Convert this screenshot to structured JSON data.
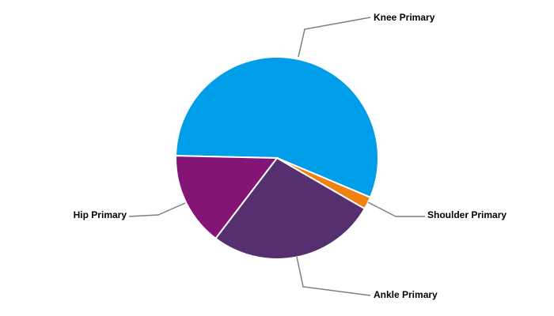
{
  "chart_data": {
    "type": "pie",
    "categories": [
      "Knee Primary",
      "Shoulder Primary",
      "Ankle Primary",
      "Hip Primary"
    ],
    "values": [
      56,
      2,
      27,
      15
    ],
    "colors": [
      "#009de8",
      "#f0820f",
      "#56306e",
      "#841476"
    ]
  }
}
